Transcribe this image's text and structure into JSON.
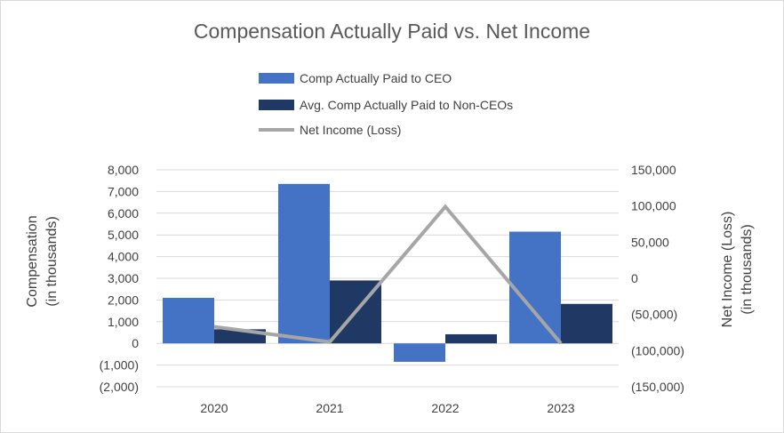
{
  "chart_data": {
    "type": "bar",
    "title": "Compensation Actually Paid vs. Net Income",
    "categories": [
      "2020",
      "2021",
      "2022",
      "2023"
    ],
    "series": [
      {
        "name": "Comp Actually Paid to CEO",
        "type": "bar",
        "axis": "left",
        "color": "#4472c4",
        "values": [
          2100,
          7350,
          -850,
          5150
        ]
      },
      {
        "name": "Avg. Comp Actually Paid to Non-CEOs",
        "type": "bar",
        "axis": "left",
        "color": "#203864",
        "values": [
          650,
          2900,
          420,
          1820
        ]
      },
      {
        "name": "Net Income (Loss)",
        "type": "line",
        "axis": "right",
        "color": "#a6a6a6",
        "values": [
          -67000,
          -88000,
          99000,
          -90000
        ]
      }
    ],
    "y_left": {
      "label_line1": "Compensation",
      "label_line2": "(in thousands)",
      "ylim": [
        -2000,
        8000
      ],
      "ticks": [
        8000,
        7000,
        6000,
        5000,
        4000,
        3000,
        2000,
        1000,
        0,
        -1000,
        -2000
      ],
      "tick_labels": [
        "8,000",
        "7,000",
        "6,000",
        "5,000",
        "4,000",
        "3,000",
        "2,000",
        "1,000",
        "0",
        "(1,000)",
        "(2,000)"
      ]
    },
    "y_right": {
      "label_line1": "Net Income (Loss)",
      "label_line2": "(in thousands)",
      "ylim": [
        -150000,
        150000
      ],
      "ticks": [
        150000,
        100000,
        50000,
        0,
        -50000,
        -100000,
        -150000
      ],
      "tick_labels": [
        "150,000",
        "100,000",
        "50,000",
        "0",
        "(50,000)",
        "(100,000)",
        "(150,000)"
      ]
    },
    "legend_position": "top-center",
    "grid": true
  }
}
